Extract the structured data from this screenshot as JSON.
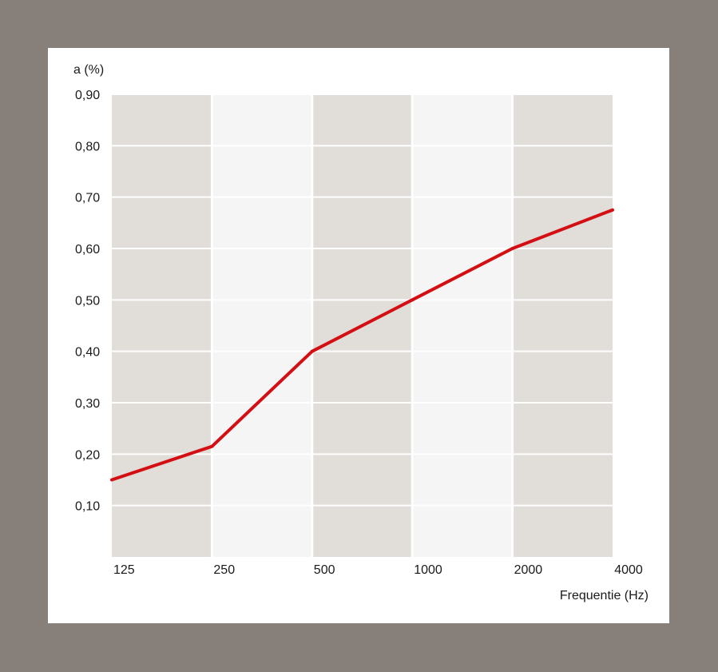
{
  "chart_data": {
    "type": "line",
    "ylabel": "a (%)",
    "xlabel": "Frequentie (Hz)",
    "ylim": [
      0,
      0.9
    ],
    "y_ticks": [
      "0,10",
      "0,20",
      "0,30",
      "0,40",
      "0,50",
      "0,60",
      "0,70",
      "0,80",
      "0,90"
    ],
    "y_tick_values": [
      0.1,
      0.2,
      0.3,
      0.4,
      0.5,
      0.6,
      0.7,
      0.8,
      0.9
    ],
    "categories": [
      "125",
      "250",
      "500",
      "1000",
      "2000",
      "4000"
    ],
    "series": [
      {
        "values": [
          0.15,
          0.215,
          0.4,
          0.5,
          0.6,
          0.675
        ]
      }
    ],
    "grid": true,
    "line_color": "#d40f14",
    "band_colors": [
      "#e1ddd8",
      "#f5f5f5"
    ]
  }
}
